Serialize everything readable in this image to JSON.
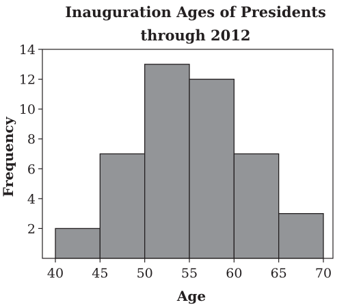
{
  "chart_data": {
    "type": "bar",
    "subtype": "histogram",
    "title": "Inauguration Ages of Presidents through 2012",
    "title_lines": [
      "Inauguration Ages of Presidents",
      "through 2012"
    ],
    "xlabel": "Age",
    "ylabel": "Frequency",
    "bins": [
      {
        "start": 40,
        "end": 45,
        "value": 2
      },
      {
        "start": 45,
        "end": 50,
        "value": 7
      },
      {
        "start": 50,
        "end": 55,
        "value": 13
      },
      {
        "start": 55,
        "end": 60,
        "value": 12
      },
      {
        "start": 60,
        "end": 65,
        "value": 7
      },
      {
        "start": 65,
        "end": 70,
        "value": 3
      }
    ],
    "xticks": [
      "40",
      "45",
      "50",
      "55",
      "60",
      "65",
      "70"
    ],
    "yticks": [
      "2",
      "4",
      "6",
      "8",
      "10",
      "12",
      "14"
    ],
    "xlim": [
      40,
      70
    ],
    "ylim": [
      0,
      14
    ],
    "grid": false,
    "colors": {
      "bar_fill": "#939598",
      "bar_stroke": "#231f20",
      "axis": "#231f20"
    }
  }
}
